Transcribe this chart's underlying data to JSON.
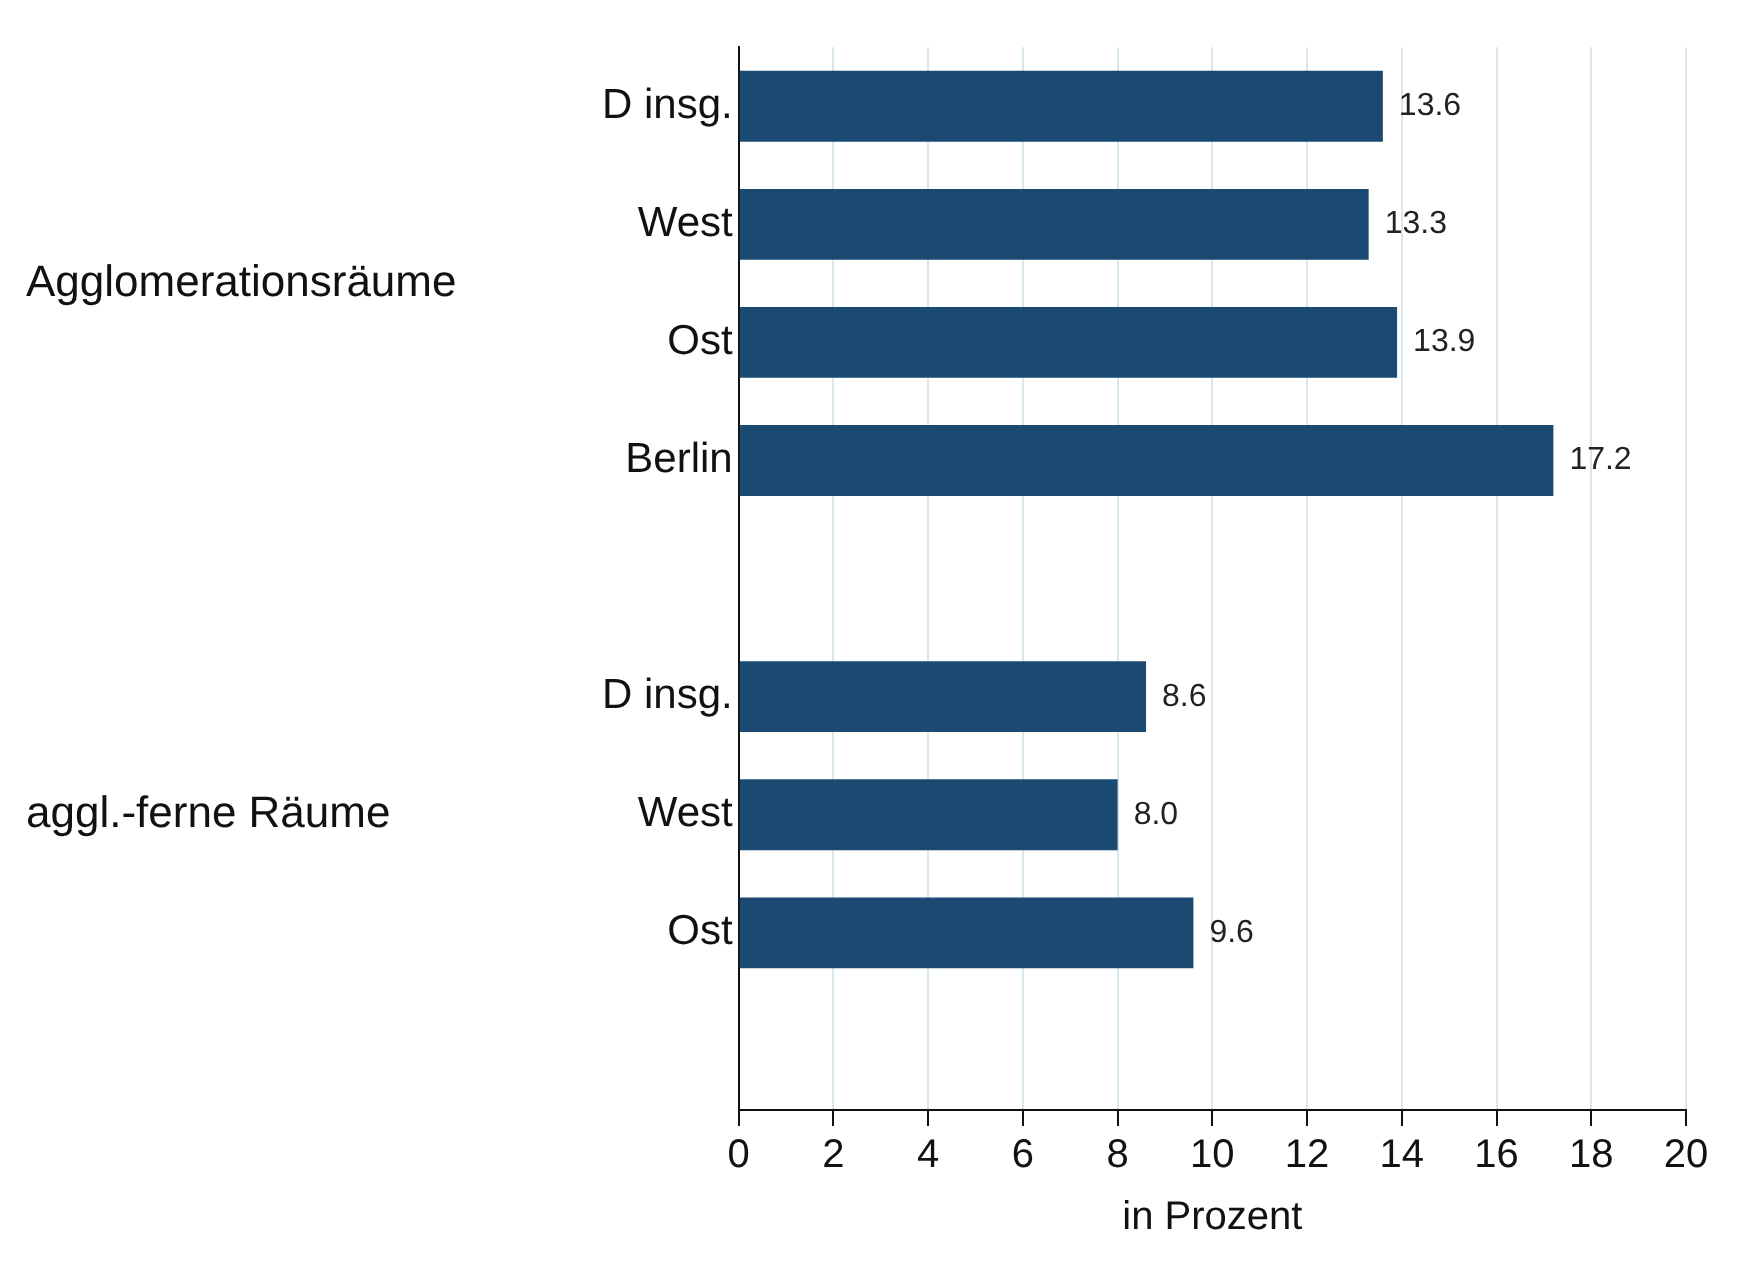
{
  "chart_data": {
    "type": "bar",
    "orientation": "horizontal",
    "categories": [
      "D insg.",
      "West",
      "Ost",
      "Berlin",
      null,
      "D insg.",
      "West",
      "Ost",
      null
    ],
    "values": [
      13.6,
      13.3,
      13.9,
      17.2,
      null,
      8.6,
      8.0,
      9.6,
      null
    ],
    "value_labels": [
      "13.6",
      "13.3",
      "13.9",
      "17.2",
      null,
      "8.6",
      "8.0",
      "9.6",
      null
    ],
    "color": "#1a4a72",
    "xlim": [
      0,
      20
    ],
    "xticks": [
      0,
      2,
      4,
      6,
      8,
      10,
      12,
      14,
      16,
      18,
      20
    ],
    "xlabel": "in Prozent",
    "annotations": [
      "Agglomerationsräume",
      "aggl.-ferne Räume"
    ],
    "grid": "x",
    "legend": false
  }
}
